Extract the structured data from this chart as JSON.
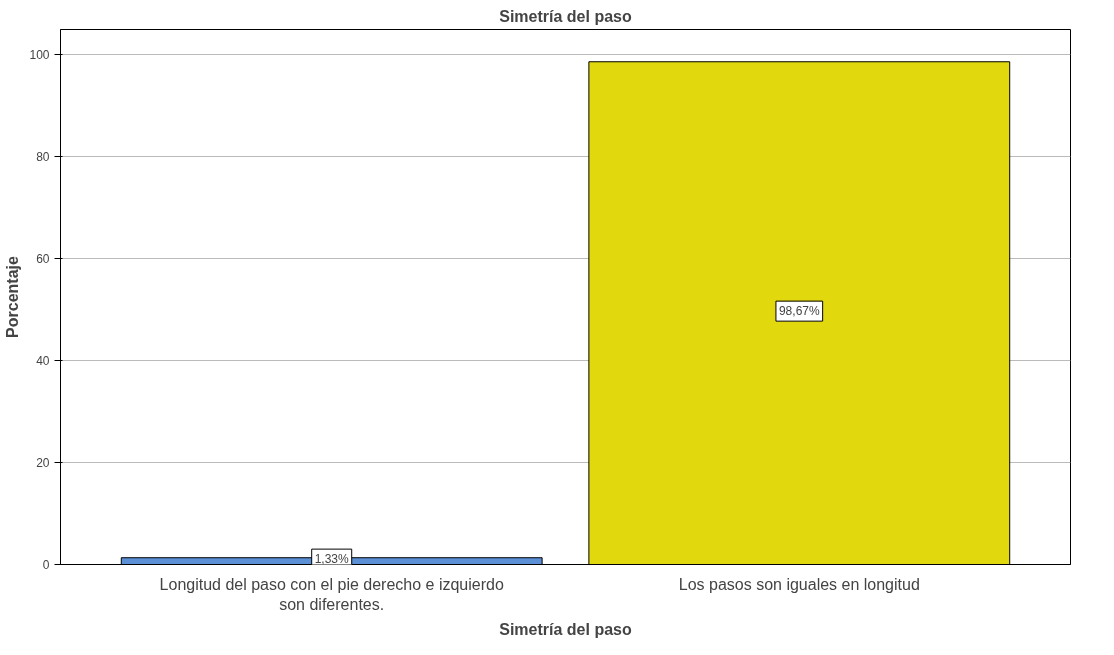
{
  "chart_data": {
    "type": "bar",
    "title": "Simetría del paso",
    "xlabel": "Simetría del paso",
    "ylabel": "Porcentaje",
    "categories": [
      "Longitud del paso con el pie derecho e izquierdo son diferentes.",
      "Los pasos son iguales en longitud"
    ],
    "values": [
      1.33,
      98.67
    ],
    "colors": [
      "#5b8fd6",
      "#e1d80e"
    ],
    "value_labels": [
      "1,33%",
      "98,67%"
    ],
    "ylim": [
      0,
      105
    ],
    "yticks": [
      0,
      20,
      40,
      60,
      80,
      100
    ],
    "grid": "y"
  }
}
